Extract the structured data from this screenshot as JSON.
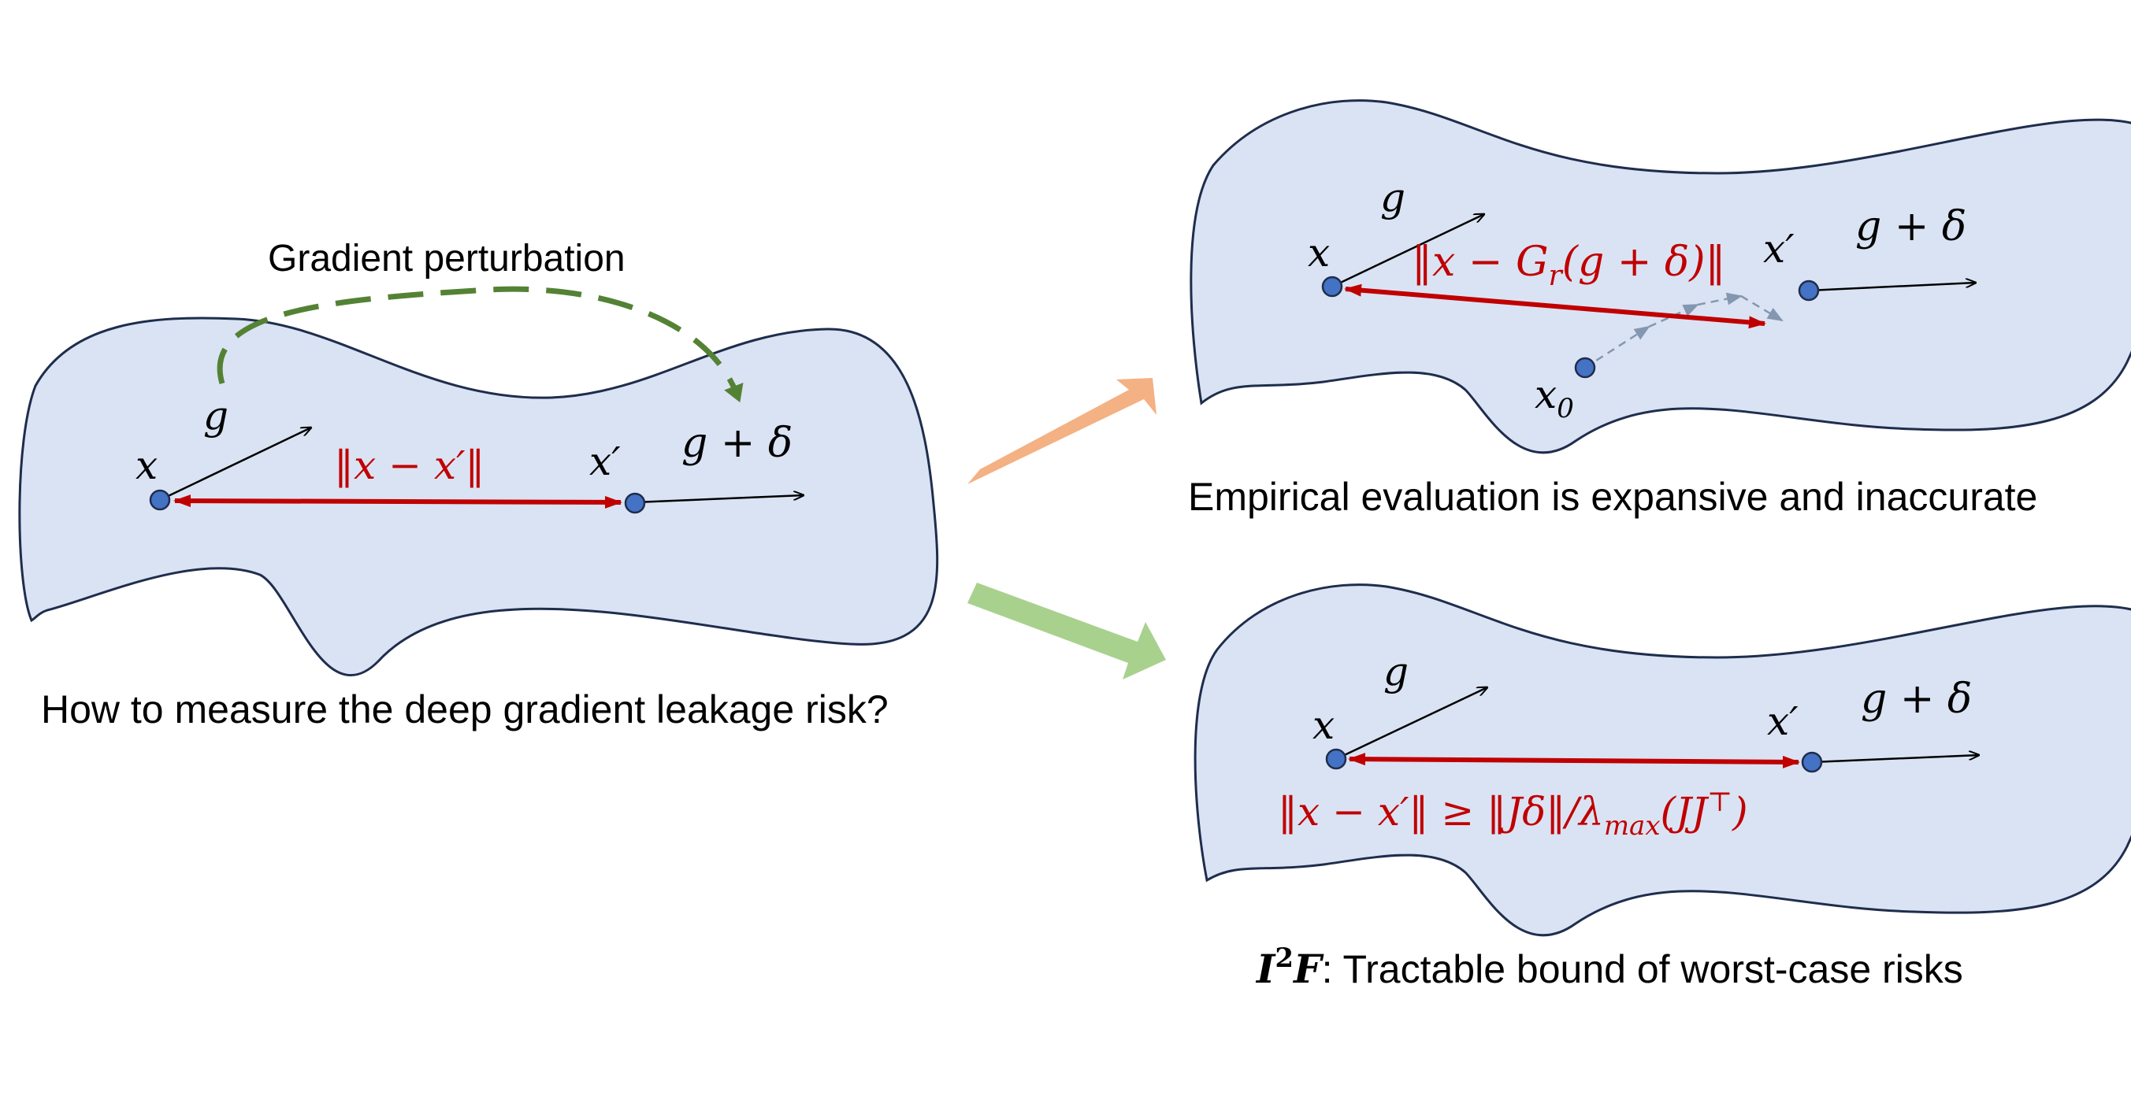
{
  "colors": {
    "blob_fill": "#dae3f3",
    "blob_stroke": "#1f2d4d",
    "point_fill": "#4472c4",
    "distance_red": "#c00000",
    "perturb_green": "#548235",
    "arrow_orange": "#f4b183",
    "arrow_green": "#a9d18e",
    "iter_gray": "#8497b0"
  },
  "left_panel": {
    "perturb_label": "Gradient perturbation",
    "x_label": "x",
    "g_label": "g",
    "xprime_label": "x′",
    "g_delta_label": "g + δ",
    "distance_label": "‖x − x′‖",
    "caption": "How to measure the deep gradient leakage risk?"
  },
  "top_right_panel": {
    "x_label": "x",
    "g_label": "g",
    "xprime_label": "x′",
    "g_delta_label": "g + δ",
    "x0_label": "x",
    "x0_sub": "0",
    "distance_label": "‖x − G",
    "distance_sub": "r",
    "distance_tail": "(g + δ)‖",
    "caption": "Empirical evaluation is expansive and inaccurate"
  },
  "bottom_right_panel": {
    "x_label": "x",
    "g_label": "g",
    "xprime_label": "x′",
    "g_delta_label": "g + δ",
    "bound_lhs": "‖x − x′‖ ≥ ",
    "bound_rhs": " ‖Jδ‖/λ",
    "bound_sub": "max",
    "bound_end": "(JJ",
    "bound_sup": "⊤",
    "bound_close": ")",
    "caption_method": "I",
    "caption_sup": "2",
    "caption_method2": "F",
    "caption_rest": ": Tractable bound of worst-case risks"
  }
}
